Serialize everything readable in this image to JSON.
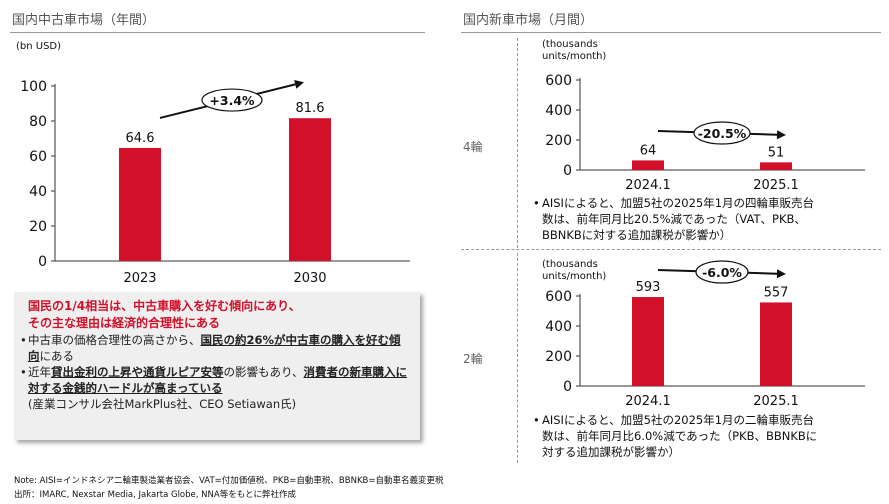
{
  "left": {
    "title": "国内中古車市場（年間）",
    "unit": "(bn USD)",
    "callout": {
      "heading_line1": "国民の1/4相当は、中古車購入を好む傾向にあり、",
      "heading_line2": "その主な理由は経済的合理性にある",
      "b1_pre": "中古車の価格合理性の高さから、",
      "b1_em": "国民の約26%が中古車の購入を好む傾向",
      "b1_post": "にある",
      "b2_pre": "近年",
      "b2_em1": "貸出金利の上昇や通貨ルピア安等",
      "b2_mid": "の影響もあり、",
      "b2_em2": "消費者の新車購入に対する金銭的ハードルが高まっている",
      "source": "(産業コンサル会社MarkPlus社、CEO Setiawan氏)"
    }
  },
  "right": {
    "title": "国内新車市場（月間）",
    "four_wheel": {
      "label": "4輪",
      "unit_line1": "(thousands",
      "unit_line2": "units/month)",
      "note_line1": "AISIによると、加盟5社の2025年1月の四輪車販売台",
      "note_line2": "数は、前年同月比20.5%減であった（VAT、PKB、",
      "note_line3": "BBNKBに対する追加課税が影響か）"
    },
    "two_wheel": {
      "label": "2輪",
      "unit_line1": "(thousands",
      "unit_line2": "units/month)",
      "note_line1": "AISIによると、加盟5社の2025年1月の二輪車販売台",
      "note_line2": "数は、前年同月比6.0%減であった（PKB、BBNKBに",
      "note_line3": "対する追加課税が影響か）"
    }
  },
  "footer": {
    "note": "Note: AISI=インドネシア二輪車製造業者協会、VAT=付加価値税、PKB=自動車税、BBNKB=自動車名義変更税",
    "source": "出所：IMARC, Nexstar Media, Jakarta Globe, NNA等をもとに弊社作成"
  },
  "chart_data": [
    {
      "id": "used",
      "type": "bar",
      "categories": [
        "2023",
        "2030"
      ],
      "values": [
        64.6,
        81.6
      ],
      "value_labels": [
        "64.6",
        "81.6"
      ],
      "ylim": [
        0,
        100
      ],
      "yticks": [
        0,
        20,
        40,
        60,
        80,
        100
      ],
      "growth_label": "+3.4%",
      "bar_color": "#d2102a"
    },
    {
      "id": "new4",
      "type": "bar",
      "categories": [
        "2024.1",
        "2025.1"
      ],
      "values": [
        64,
        51
      ],
      "value_labels": [
        "64",
        "51"
      ],
      "ylim": [
        0,
        600
      ],
      "yticks": [
        0,
        200,
        400,
        600
      ],
      "growth_label": "-20.5%",
      "bar_color": "#d2102a"
    },
    {
      "id": "new2",
      "type": "bar",
      "categories": [
        "2024.1",
        "2025.1"
      ],
      "values": [
        593,
        557
      ],
      "value_labels": [
        "593",
        "557"
      ],
      "ylim": [
        0,
        600
      ],
      "yticks": [
        0,
        200,
        400,
        600
      ],
      "growth_label": "-6.0%",
      "bar_color": "#d2102a"
    }
  ]
}
